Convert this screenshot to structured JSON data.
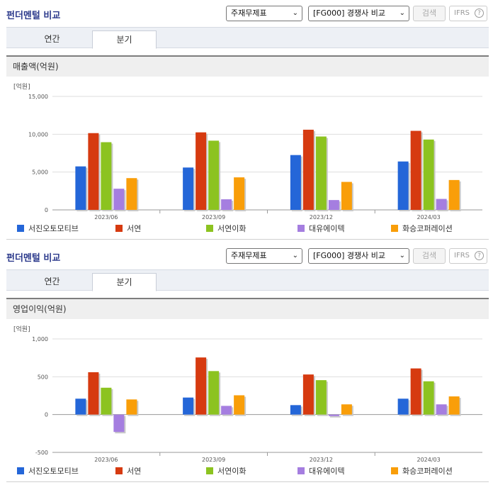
{
  "panels": [
    {
      "title": "펀더멘털 비교",
      "select_statement": "주재무제표",
      "select_compare": "[FG000] 경쟁사 비교",
      "search_label": "검색",
      "ifrs_label": "IFRS",
      "ifrs_help": "?",
      "tabs": [
        "연간",
        "분기"
      ],
      "active_tab": 1,
      "section_title": "매출액(억원)"
    },
    {
      "title": "펀더멘털 비교",
      "select_statement": "주재무제표",
      "select_compare": "[FG000] 경쟁사 비교",
      "search_label": "검색",
      "ifrs_label": "IFRS",
      "ifrs_help": "?",
      "tabs": [
        "연간",
        "분기"
      ],
      "active_tab": 1,
      "section_title": "영업이익(억원)"
    }
  ],
  "chart_data": [
    {
      "type": "bar",
      "title": "매출액(억원)",
      "unit_label": "[억원]",
      "categories": [
        "2023/06",
        "2023/09",
        "2023/12",
        "2024/03"
      ],
      "ylim": [
        0,
        15000
      ],
      "yticks": [
        0,
        5000,
        10000,
        15000
      ],
      "ytick_labels": [
        "0",
        "5,000",
        "10,000",
        "15,000"
      ],
      "grid": true,
      "legend_position": "bottom",
      "series": [
        {
          "name": "서진오토모티브",
          "color": "#2466d8",
          "values": [
            5750,
            5600,
            7250,
            6400
          ]
        },
        {
          "name": "서연",
          "color": "#d63a10",
          "values": [
            10150,
            10250,
            10600,
            10450
          ]
        },
        {
          "name": "서연이화",
          "color": "#8cc320",
          "values": [
            8950,
            9150,
            9700,
            9300
          ]
        },
        {
          "name": "대유에이텍",
          "color": "#a57ee0",
          "values": [
            2800,
            1400,
            1300,
            1450
          ]
        },
        {
          "name": "화승코퍼레이션",
          "color": "#f99e09",
          "values": [
            4200,
            4300,
            3700,
            3950
          ]
        }
      ]
    },
    {
      "type": "bar",
      "title": "영업이익(억원)",
      "unit_label": "[억원]",
      "categories": [
        "2023/06",
        "2023/09",
        "2023/12",
        "2024/03"
      ],
      "ylim": [
        -500,
        1000
      ],
      "yticks": [
        -500,
        0,
        500,
        1000
      ],
      "ytick_labels": [
        "-500",
        "0",
        "500",
        "1,000"
      ],
      "grid": true,
      "legend_position": "bottom",
      "series": [
        {
          "name": "서진오토모티브",
          "color": "#2466d8",
          "values": [
            210,
            225,
            125,
            210
          ]
        },
        {
          "name": "서연",
          "color": "#d63a10",
          "values": [
            560,
            755,
            530,
            610
          ]
        },
        {
          "name": "서연이화",
          "color": "#8cc320",
          "values": [
            355,
            575,
            455,
            440
          ]
        },
        {
          "name": "대유에이텍",
          "color": "#a57ee0",
          "values": [
            -230,
            115,
            -20,
            135
          ]
        },
        {
          "name": "화승코퍼레이션",
          "color": "#f99e09",
          "values": [
            200,
            255,
            135,
            240
          ]
        }
      ]
    }
  ]
}
